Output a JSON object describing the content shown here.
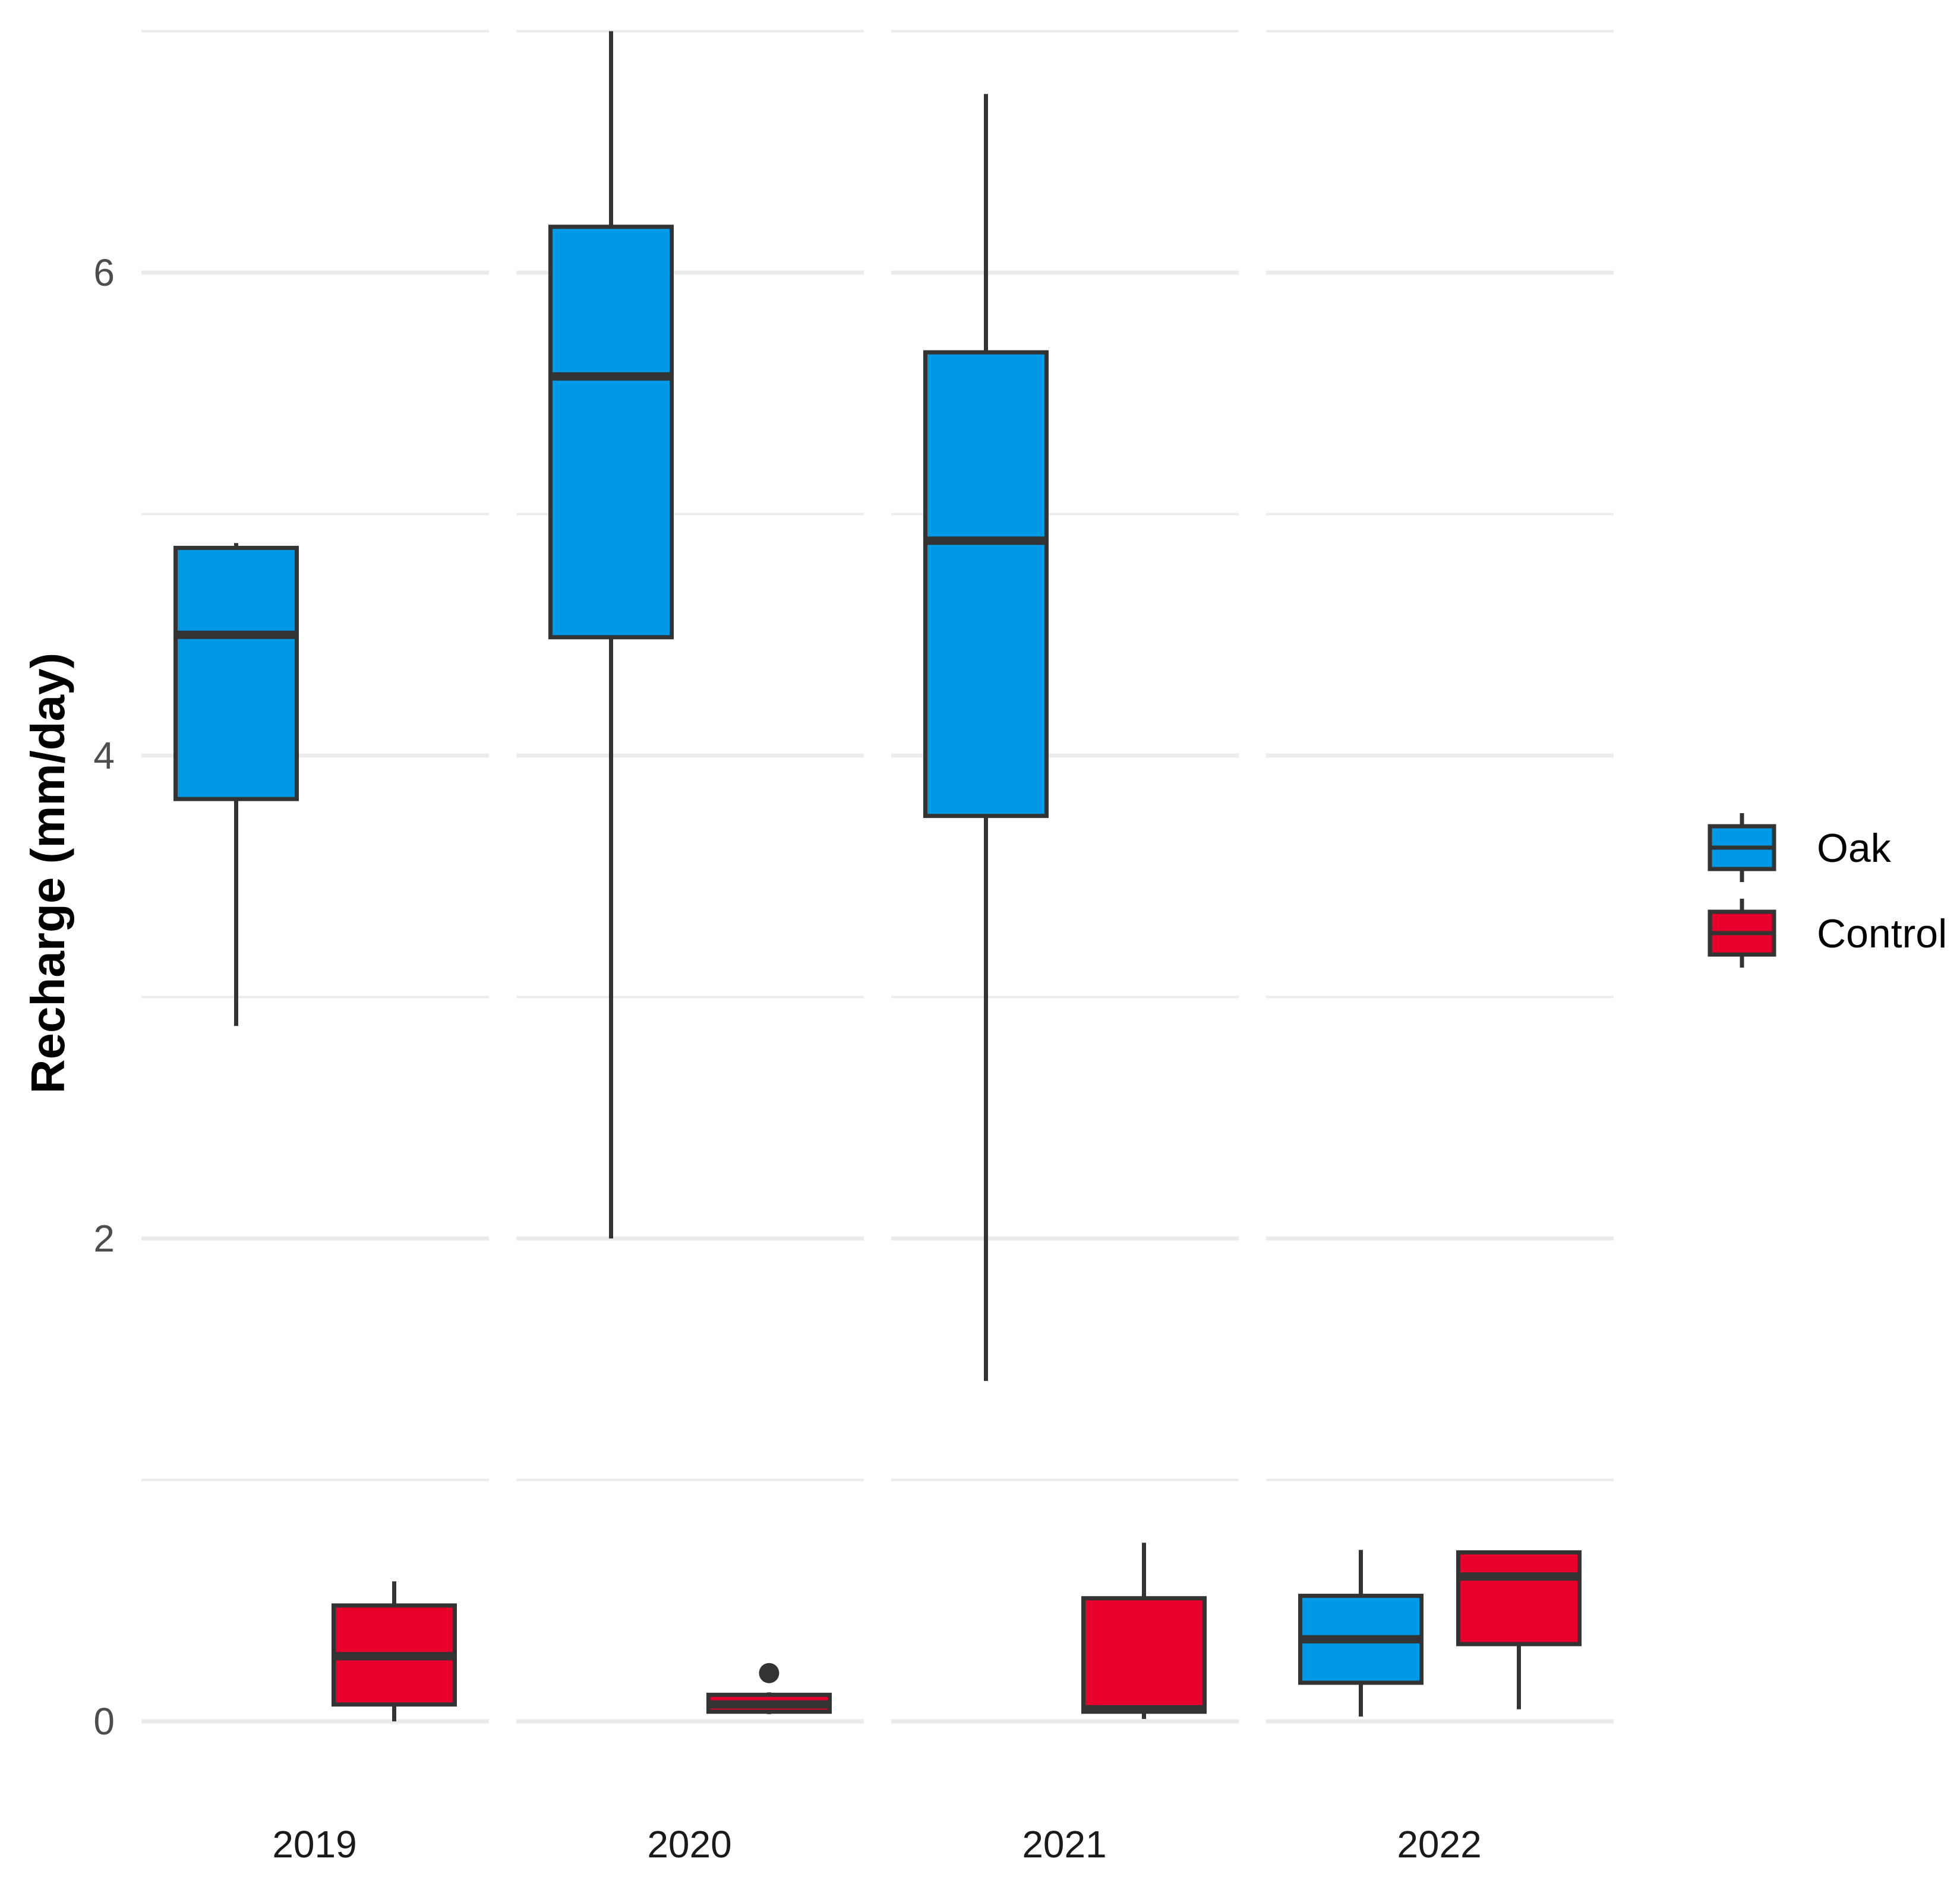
{
  "chart_data": {
    "type": "box",
    "ylabel": "Recharge (mm/day)",
    "xlabel": "",
    "ylim": [
      -0.35,
      7.2
    ],
    "yticks": [
      0,
      2,
      4,
      6
    ],
    "grid": true,
    "facets": [
      "2019",
      "2020",
      "2021",
      "2022"
    ],
    "legend": {
      "position": "right",
      "entries": [
        "Oak",
        "Control"
      ]
    },
    "series": [
      {
        "name": "Oak",
        "color": "#0099E5",
        "boxes": [
          {
            "facet": "2019",
            "whisker_low": 2.88,
            "q1": 3.82,
            "median": 4.5,
            "q3": 4.86,
            "whisker_high": 4.88,
            "outliers": []
          },
          {
            "facet": "2020",
            "whisker_low": 2.0,
            "q1": 4.49,
            "median": 5.57,
            "q3": 6.19,
            "whisker_high": 7.0,
            "outliers": []
          },
          {
            "facet": "2021",
            "whisker_low": 1.41,
            "q1": 3.75,
            "median": 4.89,
            "q3": 5.67,
            "whisker_high": 6.74,
            "outliers": []
          },
          {
            "facet": "2022",
            "whisker_low": 0.02,
            "q1": 0.16,
            "median": 0.34,
            "q3": 0.52,
            "whisker_high": 0.71,
            "outliers": []
          }
        ]
      },
      {
        "name": "Control",
        "color": "#E8002D",
        "boxes": [
          {
            "facet": "2019",
            "whisker_low": 0.0,
            "q1": 0.07,
            "median": 0.27,
            "q3": 0.48,
            "whisker_high": 0.58,
            "outliers": []
          },
          {
            "facet": "2020",
            "whisker_low": 0.03,
            "q1": 0.04,
            "median": 0.07,
            "q3": 0.11,
            "whisker_high": 0.12,
            "outliers": [
              0.2
            ]
          },
          {
            "facet": "2021",
            "whisker_low": 0.01,
            "q1": 0.04,
            "median": 0.05,
            "q3": 0.51,
            "whisker_high": 0.74,
            "outliers": []
          },
          {
            "facet": "2022",
            "whisker_low": 0.05,
            "q1": 0.32,
            "median": 0.6,
            "q3": 0.7,
            "whisker_high": 0.7,
            "outliers": []
          }
        ]
      }
    ]
  }
}
